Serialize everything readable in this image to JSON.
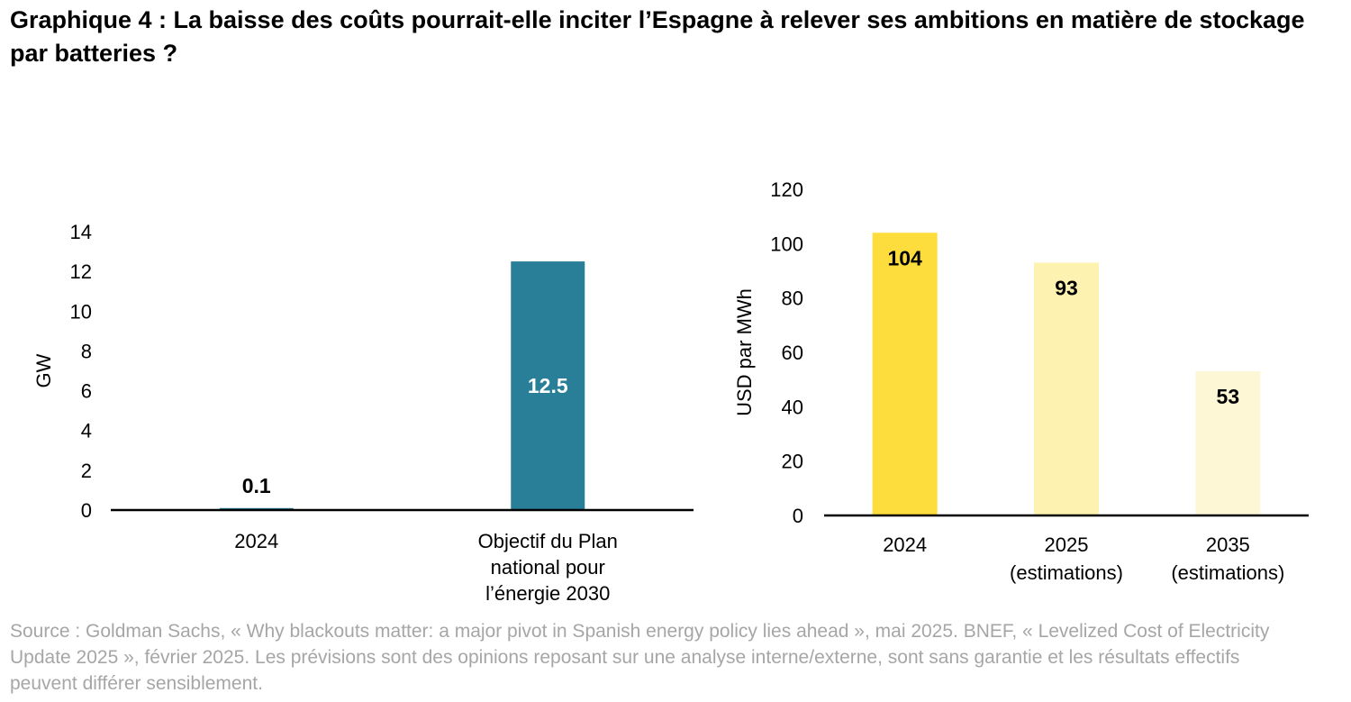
{
  "title": "Graphique 4 : La baisse des coûts pourrait-elle inciter l’Espagne à relever ses ambitions en matière de stockage par batteries ?",
  "source": "Source : Goldman Sachs, « Why blackouts matter: a major pivot in Spanish energy policy lies ahead », mai 2025. BNEF, « Levelized Cost of Electricity Update 2025 », février 2025. Les prévisions sont des opinions reposant sur une analyse interne/externe, sont sans garantie et les résultats effectifs peuvent différer sensiblement.",
  "chart_data": [
    {
      "type": "bar",
      "title": "",
      "xlabel": "",
      "ylabel": "GW",
      "ylim": [
        0,
        14
      ],
      "yticks": [
        "0",
        "2",
        "4",
        "6",
        "8",
        "10",
        "12",
        "14"
      ],
      "grid": false,
      "categories": [
        [
          "2024"
        ],
        [
          "Objectif du Plan",
          "national pour",
          "l’énergie 2030"
        ]
      ],
      "values": [
        0.1,
        12.5
      ],
      "data_labels": [
        "0.1",
        "12.5"
      ],
      "colors": [
        "#2a7f98",
        "#2a7f98"
      ],
      "label_colors": [
        "#000000",
        "#ffffff"
      ]
    },
    {
      "type": "bar",
      "title": "",
      "xlabel": "",
      "ylabel": "USD par MWh",
      "ylim": [
        0,
        120
      ],
      "yticks": [
        "0",
        "20",
        "40",
        "60",
        "80",
        "100",
        "120"
      ],
      "grid": false,
      "categories": [
        [
          "2024"
        ],
        [
          "2025",
          "(estimations)"
        ],
        [
          "2035",
          "(estimations)"
        ]
      ],
      "values": [
        104,
        93,
        53
      ],
      "data_labels": [
        "104",
        "93",
        "53"
      ],
      "colors": [
        "#fddd3d",
        "#fef2b1",
        "#fef7d5"
      ],
      "label_colors": [
        "#000000",
        "#000000",
        "#000000"
      ]
    }
  ]
}
